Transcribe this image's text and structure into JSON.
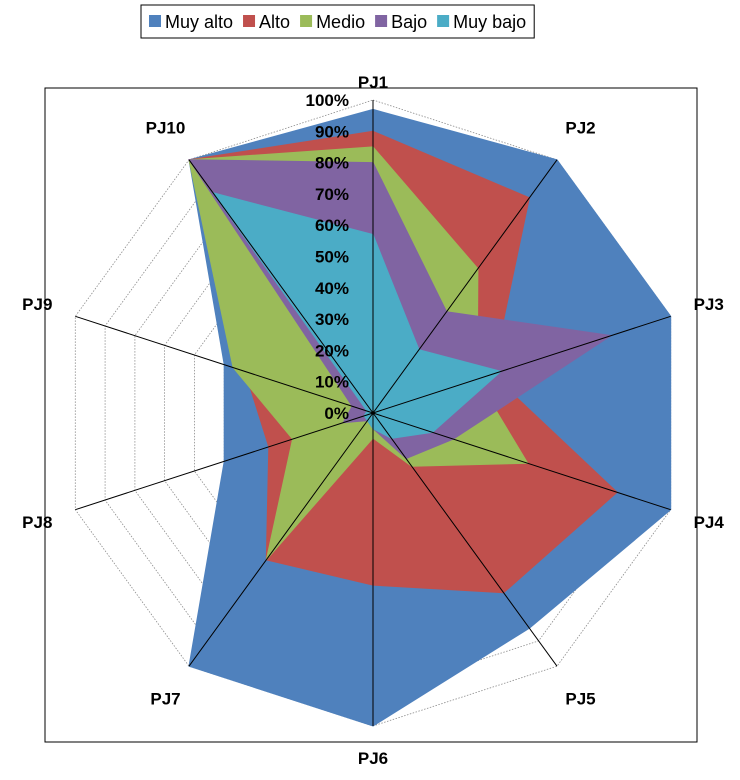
{
  "chart_data": {
    "type": "radar",
    "chart_subtype": "filled-radar",
    "categories": [
      "PJ1",
      "PJ2",
      "PJ3",
      "PJ4",
      "PJ5",
      "PJ6",
      "PJ7",
      "PJ8",
      "PJ9",
      "PJ10"
    ],
    "rlim": [
      0,
      100
    ],
    "rticks": [
      "0%",
      "10%",
      "20%",
      "30%",
      "40%",
      "50%",
      "60%",
      "70%",
      "80%",
      "90%",
      "100%"
    ],
    "rtick_values": [
      0,
      10,
      20,
      30,
      40,
      50,
      60,
      70,
      80,
      90,
      100
    ],
    "grid": true,
    "legend_position": "top",
    "series": [
      {
        "name": "Muy alto",
        "color": "#4F81BD",
        "values": [
          97,
          100,
          100,
          100,
          85,
          100,
          100,
          50,
          50,
          100
        ]
      },
      {
        "name": "Alto",
        "color": "#C0504D",
        "values": [
          90,
          85,
          40,
          82,
          71,
          55,
          58,
          35,
          43,
          100
        ]
      },
      {
        "name": "Medio",
        "color": "#9BBB59",
        "values": [
          85,
          57,
          35,
          52,
          21,
          8,
          58,
          27,
          47,
          100
        ]
      },
      {
        "name": "Bajo",
        "color": "#8064A2",
        "values": [
          80,
          40,
          80,
          27,
          18,
          5,
          3,
          10,
          7,
          100
        ]
      },
      {
        "name": "Muy bajo",
        "color": "#4BACC6",
        "values": [
          57,
          25,
          43,
          20,
          10,
          5,
          3,
          3,
          2,
          87
        ]
      }
    ]
  }
}
